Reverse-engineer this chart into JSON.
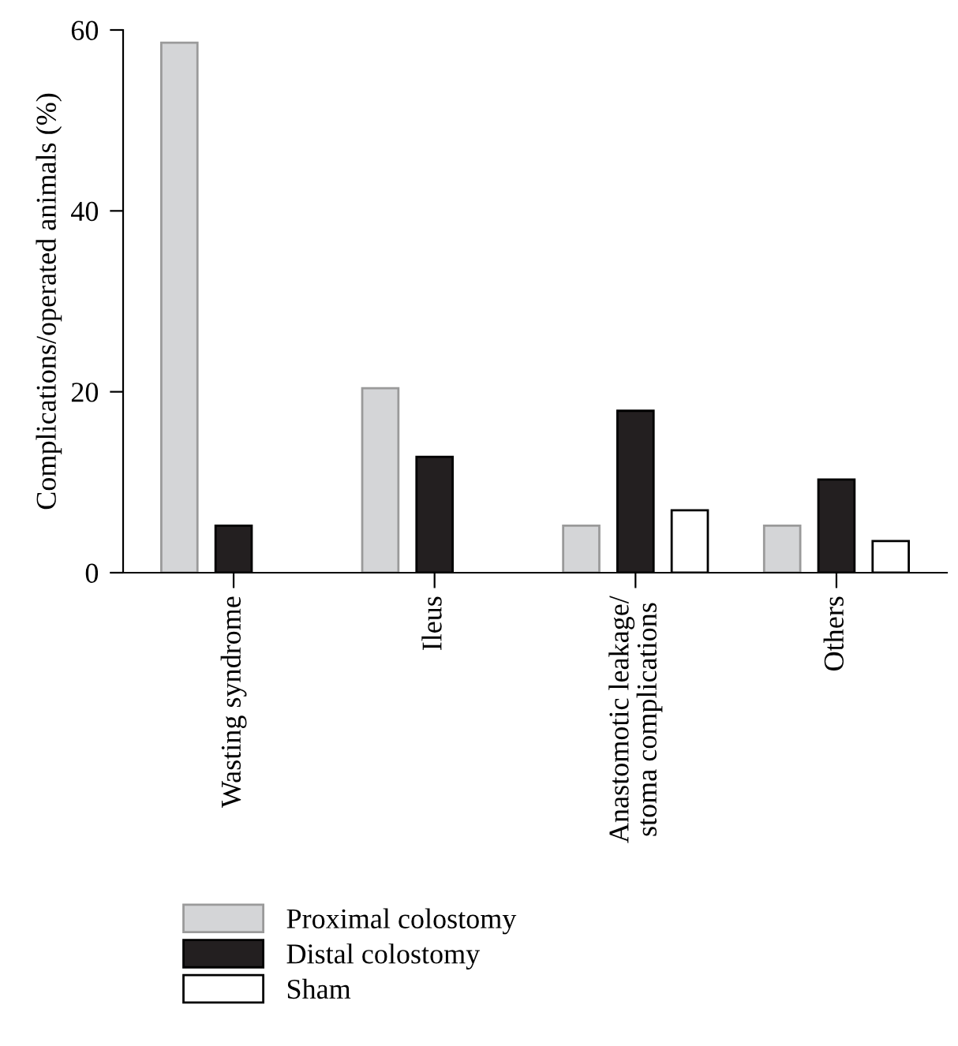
{
  "chart_data": {
    "type": "bar",
    "ylabel": "Complications/operated animals (%)",
    "categories": [
      "Wasting syndrome",
      "Ileus",
      "Anastomotic leakage/\nstoma complications",
      "Others"
    ],
    "series": [
      {
        "name": "Proximal colostomy",
        "color": "#d4d5d7",
        "values": [
          58.6,
          20.4,
          5.2,
          5.2
        ]
      },
      {
        "name": "Distal colostomy",
        "color": "#231f20",
        "values": [
          5.2,
          12.8,
          17.9,
          10.3
        ]
      },
      {
        "name": "Sham",
        "color": "#ffffff",
        "values": [
          null,
          null,
          6.9,
          3.5
        ]
      }
    ],
    "ylim": [
      0,
      60
    ],
    "yticks": [
      0,
      20,
      40,
      60
    ],
    "grid": false,
    "legend": "bottom left"
  }
}
